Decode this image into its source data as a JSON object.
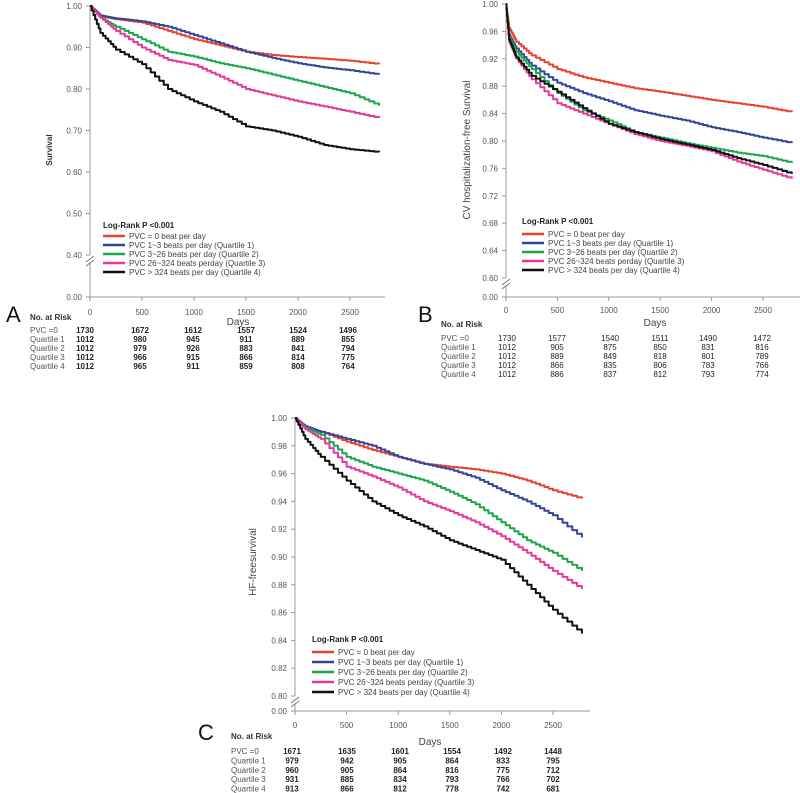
{
  "colors": {
    "pvc0": "#e8412c",
    "q1": "#34449a",
    "q2": "#1aa64a",
    "q3": "#e5389a",
    "q4": "#111111"
  },
  "chart_data": [
    {
      "type": "line",
      "panel": "A",
      "title": "",
      "ylabel": "Survival",
      "xlabel": "Days",
      "ylim": [
        0.4,
        1.0
      ],
      "yticks": [
        "1.00",
        "0.90",
        "0.80",
        "0.70",
        "0.60",
        "0.50",
        "0.40"
      ],
      "ybreak_label": "0.00",
      "xlim": [
        0,
        2800
      ],
      "xticks": [
        "0",
        "500",
        "1000",
        "1500",
        "2000",
        "2500"
      ],
      "legend_title": "Log-Rank P <0.001",
      "legend_position": "bottom-left",
      "x": [
        0,
        100,
        250,
        500,
        750,
        1000,
        1250,
        1500,
        1750,
        2000,
        2250,
        2500,
        2780
      ],
      "series": [
        {
          "key": "pvc0",
          "name": "PVC = 0 beat per day",
          "values": [
            1,
            0.975,
            0.968,
            0.96,
            0.94,
            0.92,
            0.905,
            0.89,
            0.882,
            0.877,
            0.873,
            0.868,
            0.86
          ]
        },
        {
          "key": "q1",
          "name": "PVC 1~3 beats per day (Quartile 1)",
          "values": [
            1,
            0.977,
            0.97,
            0.963,
            0.95,
            0.93,
            0.91,
            0.89,
            0.875,
            0.862,
            0.852,
            0.845,
            0.835
          ]
        },
        {
          "key": "q2",
          "name": "PVC 3~26 beats per day (Quartile 2)",
          "values": [
            1,
            0.972,
            0.95,
            0.92,
            0.89,
            0.878,
            0.862,
            0.85,
            0.835,
            0.82,
            0.805,
            0.79,
            0.76
          ]
        },
        {
          "key": "q3",
          "name": "PVC 26~324 beats perday (Quartile 3)",
          "values": [
            1,
            0.972,
            0.94,
            0.9,
            0.87,
            0.858,
            0.83,
            0.8,
            0.785,
            0.77,
            0.758,
            0.745,
            0.73
          ]
        },
        {
          "key": "q4",
          "name": "PVC > 324 beats per day (Quartile 4)",
          "values": [
            1,
            0.935,
            0.895,
            0.86,
            0.8,
            0.77,
            0.745,
            0.71,
            0.7,
            0.685,
            0.665,
            0.655,
            0.648
          ]
        }
      ],
      "risk_table": {
        "header": "No. at Risk",
        "columns": [
          "0",
          "500",
          "1000",
          "1500",
          "2000",
          "2500"
        ],
        "rows": [
          {
            "label": "PVC =0",
            "values": [
              "1730",
              "1672",
              "1612",
              "1557",
              "1524",
              "1496"
            ]
          },
          {
            "label": "Quartile 1",
            "values": [
              "1012",
              "980",
              "945",
              "911",
              "889",
              "855"
            ]
          },
          {
            "label": "Quartile 2",
            "values": [
              "1012",
              "979",
              "926",
              "883",
              "841",
              "794"
            ]
          },
          {
            "label": "Quartile 3",
            "values": [
              "1012",
              "966",
              "915",
              "866",
              "814",
              "775"
            ]
          },
          {
            "label": "Quartile 4",
            "values": [
              "1012",
              "965",
              "911",
              "859",
              "808",
              "764"
            ]
          }
        ]
      }
    },
    {
      "type": "line",
      "panel": "B",
      "title": "",
      "ylabel": "CV hospitalization-free Survival",
      "xlabel": "Days",
      "ylim": [
        0.6,
        1.0
      ],
      "yticks": [
        "1.00",
        "0.96",
        "0.92",
        "0.88",
        "0.84",
        "0.80",
        "0.76",
        "0.72",
        "0.68",
        "0.64",
        "0.60"
      ],
      "ybreak_label": "0.00",
      "xlim": [
        0,
        2800
      ],
      "xticks": [
        "0",
        "500",
        "1000",
        "1500",
        "2000",
        "2500"
      ],
      "legend_title": "Log-Rank P <0.001",
      "legend_position": "bottom-left",
      "x": [
        0,
        30,
        100,
        250,
        500,
        750,
        1000,
        1250,
        1500,
        1750,
        2000,
        2250,
        2500,
        2780
      ],
      "series": [
        {
          "key": "pvc0",
          "name": "PVC = 0 beat per day",
          "values": [
            1,
            0.965,
            0.945,
            0.925,
            0.905,
            0.893,
            0.885,
            0.877,
            0.872,
            0.866,
            0.86,
            0.855,
            0.85,
            0.842
          ]
        },
        {
          "key": "q1",
          "name": "PVC 1~3 beats per day (Quartile 1)",
          "values": [
            1,
            0.955,
            0.935,
            0.91,
            0.885,
            0.87,
            0.858,
            0.845,
            0.837,
            0.83,
            0.82,
            0.813,
            0.805,
            0.797
          ]
        },
        {
          "key": "q2",
          "name": "PVC 3~26 beats per day (Quartile 2)",
          "values": [
            1,
            0.952,
            0.93,
            0.905,
            0.87,
            0.845,
            0.83,
            0.813,
            0.805,
            0.797,
            0.79,
            0.783,
            0.778,
            0.768
          ]
        },
        {
          "key": "q3",
          "name": "PVC 26~324 beats perday (Quartile 3)",
          "values": [
            1,
            0.945,
            0.92,
            0.89,
            0.855,
            0.84,
            0.825,
            0.81,
            0.8,
            0.793,
            0.785,
            0.77,
            0.758,
            0.745
          ]
        },
        {
          "key": "q4",
          "name": "PVC > 324 beats per day (Quartile 4)",
          "values": [
            1,
            0.948,
            0.922,
            0.895,
            0.872,
            0.848,
            0.825,
            0.813,
            0.803,
            0.795,
            0.787,
            0.775,
            0.765,
            0.752
          ]
        }
      ],
      "risk_table": {
        "header": "No. at Risk",
        "columns": [
          "0",
          "500",
          "1000",
          "1500",
          "2000",
          "2500"
        ],
        "rows": [
          {
            "label": "PVC =0",
            "values": [
              "1730",
              "1577",
              "1540",
              "1511",
              "1490",
              "1472"
            ]
          },
          {
            "label": "Quartile 1",
            "values": [
              "1012",
              "905",
              "875",
              "850",
              "831",
              "816"
            ]
          },
          {
            "label": "Quartile 2",
            "values": [
              "1012",
              "889",
              "849",
              "818",
              "801",
              "789"
            ]
          },
          {
            "label": "Quartile 3",
            "values": [
              "1012",
              "866",
              "835",
              "806",
              "783",
              "766"
            ]
          },
          {
            "label": "Quartile 4",
            "values": [
              "1012",
              "886",
              "837",
              "812",
              "793",
              "774"
            ]
          }
        ]
      }
    },
    {
      "type": "line",
      "panel": "C",
      "title": "",
      "ylabel": "HF-freesurvival",
      "xlabel": "Days",
      "ylim": [
        0.8,
        1.0
      ],
      "yticks": [
        "1.00",
        "0.98",
        "0.96",
        "0.94",
        "0.92",
        "0.90",
        "0.88",
        "0.86",
        "0.84",
        "0.82",
        "0.80"
      ],
      "ybreak_label": "0.00",
      "xlim": [
        0,
        2800
      ],
      "xticks": [
        "0",
        "500",
        "1000",
        "1500",
        "2000",
        "2500"
      ],
      "legend_title": "Log-Rank P <0.001",
      "legend_position": "bottom-left",
      "x": [
        0,
        100,
        250,
        500,
        750,
        1000,
        1250,
        1500,
        1750,
        2000,
        2250,
        2500,
        2780
      ],
      "series": [
        {
          "key": "pvc0",
          "name": "PVC = 0 beat per day",
          "values": [
            1,
            0.993,
            0.99,
            0.983,
            0.977,
            0.972,
            0.967,
            0.965,
            0.963,
            0.96,
            0.955,
            0.948,
            0.942
          ]
        },
        {
          "key": "q1",
          "name": "PVC 1~3 beats per day (Quartile 1)",
          "values": [
            1,
            0.994,
            0.99,
            0.985,
            0.98,
            0.972,
            0.967,
            0.963,
            0.957,
            0.948,
            0.94,
            0.93,
            0.914
          ]
        },
        {
          "key": "q2",
          "name": "PVC 3~26 beats per day (Quartile 2)",
          "values": [
            1,
            0.993,
            0.988,
            0.972,
            0.965,
            0.96,
            0.955,
            0.947,
            0.938,
            0.925,
            0.912,
            0.903,
            0.89
          ]
        },
        {
          "key": "q3",
          "name": "PVC 26~324 beats perday (Quartile 3)",
          "values": [
            1,
            0.992,
            0.985,
            0.965,
            0.958,
            0.95,
            0.94,
            0.933,
            0.925,
            0.915,
            0.903,
            0.89,
            0.877
          ]
        },
        {
          "key": "q4",
          "name": "PVC > 324 beats per day (Quartile 4)",
          "values": [
            1,
            0.985,
            0.972,
            0.955,
            0.94,
            0.93,
            0.922,
            0.912,
            0.905,
            0.898,
            0.88,
            0.862,
            0.845
          ]
        }
      ],
      "risk_table": {
        "header": "No. at Risk",
        "columns": [
          "0",
          "500",
          "1000",
          "1500",
          "2000",
          "2500"
        ],
        "rows": [
          {
            "label": "PVC =0",
            "values": [
              "1671",
              "1635",
              "1601",
              "1554",
              "1492",
              "1448"
            ]
          },
          {
            "label": "Quartile 1",
            "values": [
              "979",
              "942",
              "905",
              "864",
              "833",
              "795"
            ]
          },
          {
            "label": "Quartile 2",
            "values": [
              "960",
              "905",
              "864",
              "816",
              "775",
              "712"
            ]
          },
          {
            "label": "Quartile 3",
            "values": [
              "931",
              "885",
              "834",
              "793",
              "766",
              "702"
            ]
          },
          {
            "label": "Quartile 4",
            "values": [
              "913",
              "866",
              "812",
              "778",
              "742",
              "681"
            ]
          }
        ]
      }
    }
  ]
}
